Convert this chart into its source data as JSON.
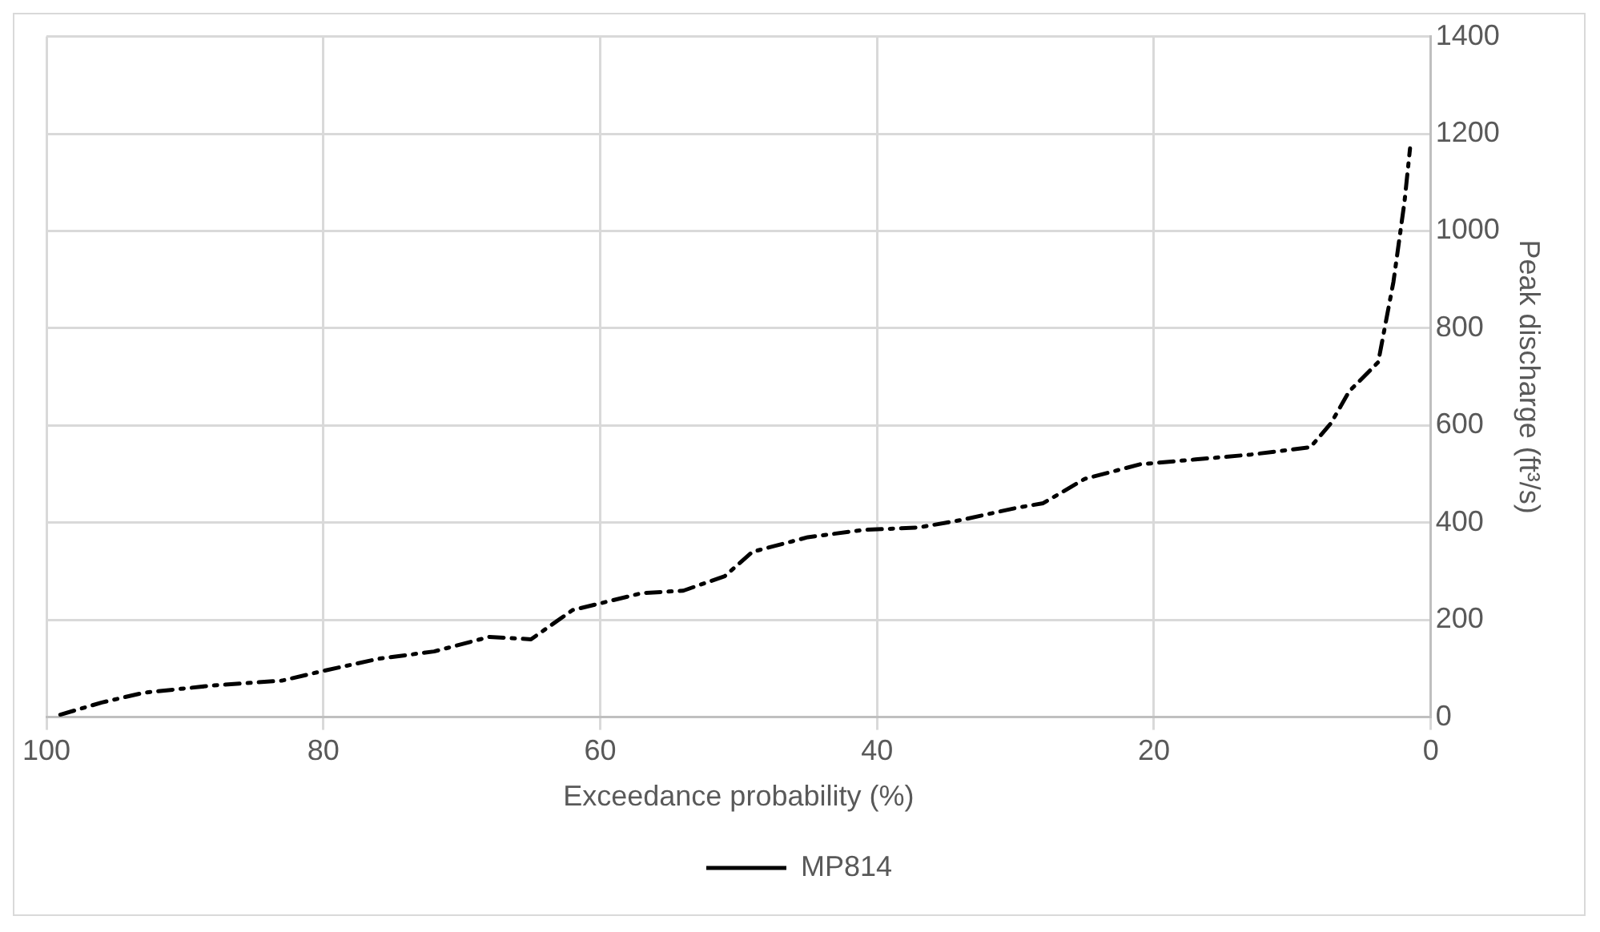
{
  "chart_data": {
    "type": "line",
    "xlabel": "Exceedance probability (%)",
    "ylabel": "Peak discharge (ft³/s)",
    "xlim": [
      100,
      0
    ],
    "xticks": [
      100,
      80,
      60,
      40,
      20,
      0
    ],
    "ylim": [
      0,
      1400
    ],
    "yticks": [
      0,
      200,
      400,
      600,
      800,
      1000,
      1200,
      1400
    ],
    "grid": true,
    "legend": "bottom",
    "line_style": "dashed",
    "marker": "none",
    "series": [
      {
        "name": "MP814",
        "color": "#000000",
        "x": [
          99,
          96,
          93,
          88,
          83,
          80,
          76,
          72,
          68,
          65,
          62,
          57,
          54,
          51,
          49,
          45,
          41,
          37,
          34,
          30,
          28,
          25,
          21,
          17,
          13,
          8.7,
          7.2,
          5.9,
          3.8,
          2.7,
          1.9,
          1.5
        ],
        "values": [
          5,
          30,
          50,
          65,
          75,
          95,
          120,
          135,
          165,
          160,
          220,
          255,
          260,
          290,
          340,
          370,
          385,
          390,
          405,
          430,
          440,
          490,
          520,
          530,
          540,
          555,
          605,
          670,
          730,
          895,
          1060,
          1170
        ]
      }
    ]
  }
}
